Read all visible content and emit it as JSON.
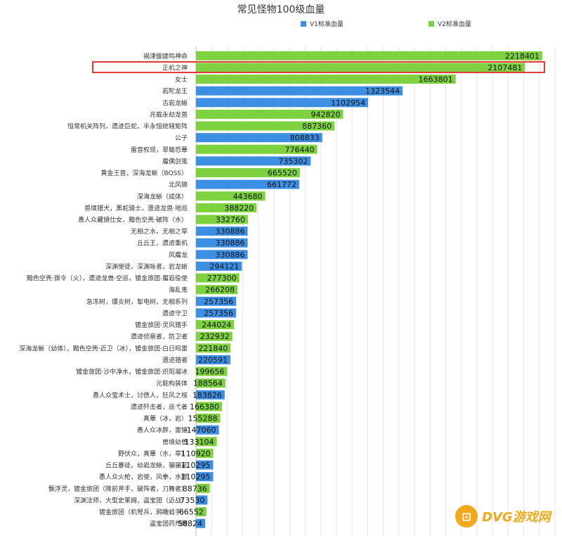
{
  "chart_data": {
    "type": "bar",
    "orientation": "horizontal",
    "title": "常见怪物100级血量",
    "legend": [
      {
        "name": "V1标准血量",
        "color": "#3d8fe3"
      },
      {
        "name": "V2标准血量",
        "color": "#7ed23f"
      }
    ],
    "xlim": [
      0,
      2300000
    ],
    "grid": true,
    "highlighted_category": "正机之神",
    "categories": [
      "祸津御建鸣神命",
      "正机之神",
      "女士",
      "若陀龙王",
      "古岩龙蜥",
      "兆载永劫龙兽",
      "恒常机关阵列，遗迹巨蛇，半永恒统辖矩阵",
      "公子",
      "雷音权现，翠锄恐蕈",
      "魔偶剑鬼",
      "黄金王兽，深海龙蜥（BOSS）",
      "北风狼",
      "深海龙蜥（成体）",
      "兽境猎犬，黑蛇骑士，遗迹龙兽·地巡",
      "愚人众藏镜仕女，黯色空壳·破阵（水）",
      "无相之水，无相之草",
      "丘丘王，遗迹重机",
      "风魔龙",
      "深渊使徒，深渊咏者，岩龙蜥",
      "黯色空壳·旗令（火），遗迹龙兽·空巡，镀金旅团·魔岩役使",
      "海乱鬼",
      "急冻树，爆炎树，掣电树，无相系列",
      "遗迹守卫",
      "镀金旅团·灵风猎手",
      "遗迹侦察者，防卫者",
      "深海龙蜥（幼体），黯色空壳·近卫（冰），镀金旅团·白日鸣雷",
      "遗迹猎者",
      "镀金旅团·沙中净水，镀金旅团·炽阳凝冰",
      "元能构装体",
      "愚人众萤术士，讨债人，狂风之核",
      "遗迹歼击者，巡弋者",
      "真蕈（冰，岩）",
      "愚人众冰胖，雷锤",
      "兽境幼兽",
      "野伏众，真蕈（水，草）",
      "丘丘暴徒，幼岩龙蜥，骗骗花",
      "愚人众火枪，岩使，风拳，水胖",
      "飘浮灵，镀金旅团（降前斧手，破阵者，刀舞者）",
      "深渊法师，大型史莱姆，盗宝团（近战）",
      "镀金旅团（机弩兵，鸦瞰蛙手）",
      "盗宝团药剂师"
    ],
    "values": [
      2218401,
      2107481,
      1663801,
      1323544,
      1102954,
      942820,
      887360,
      808833,
      776440,
      735302,
      665520,
      661772,
      443680,
      388220,
      332760,
      330886,
      330886,
      330886,
      294121,
      277300,
      266208,
      257356,
      257356,
      244024,
      232932,
      221840,
      220591,
      199656,
      188564,
      183826,
      166380,
      155288,
      147060,
      133104,
      110920,
      110295,
      110295,
      88736,
      73530,
      66552,
      58824
    ],
    "series_index": [
      "V2",
      "V2",
      "V2",
      "V1",
      "V1",
      "V2",
      "V2",
      "V1",
      "V2",
      "V1",
      "V2",
      "V1",
      "V2",
      "V2",
      "V2",
      "V1",
      "V1",
      "V1",
      "V1",
      "V2",
      "V2",
      "V1",
      "V1",
      "V2",
      "V2",
      "V2",
      "V1",
      "V2",
      "V2",
      "V1",
      "V2",
      "V2",
      "V1",
      "V2",
      "V2",
      "V1",
      "V1",
      "V2",
      "V1",
      "V2",
      "V1"
    ]
  },
  "watermark": {
    "text": "DVG游戏网",
    "logo_icon": "gamepad-icon"
  }
}
